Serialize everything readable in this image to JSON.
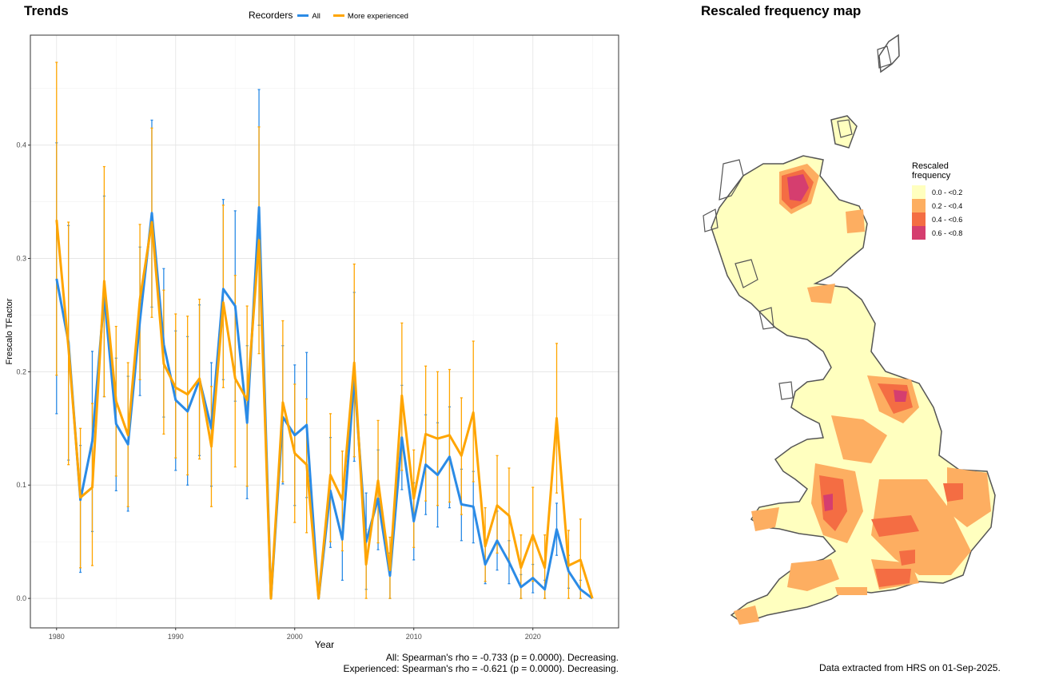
{
  "trends": {
    "title": "Trends",
    "legend_title": "Recorders",
    "stat_all": "All: Spearman's rho = -0.733 (p = 0.0000). Decreasing.",
    "stat_experienced": "Experienced: Spearman's rho = -0.621 (p = 0.0000). Decreasing."
  },
  "map": {
    "title": "Rescaled frequency map",
    "legend_title_line1": "Rescaled",
    "legend_title_line2": "frequency",
    "bins": [
      {
        "label": "0.0 - <0.2",
        "color": "#ffffbf"
      },
      {
        "label": "0.2 - <0.4",
        "color": "#fdae61"
      },
      {
        "label": "0.4 - <0.6",
        "color": "#f46d43"
      },
      {
        "label": "0.6 - <0.8",
        "color": "#d53e6f"
      }
    ],
    "footnote": "Data extracted from HRS on 01-Sep-2025."
  },
  "chart_data": {
    "type": "line",
    "title": "Trends",
    "xlabel": "Year",
    "ylabel": "Frescalo TFactor",
    "xlim": [
      1977.8,
      2027.2
    ],
    "ylim": [
      -0.026,
      0.497
    ],
    "x_ticks": [
      1980,
      1990,
      2000,
      2010,
      2020
    ],
    "y_ticks": [
      0.0,
      0.1,
      0.2,
      0.3,
      0.4
    ],
    "y_tick_labels": [
      "0.0",
      "0.1",
      "0.2",
      "0.3",
      "0.4"
    ],
    "grid": true,
    "legend_placement": "top",
    "x": [
      1980,
      1981,
      1982,
      1983,
      1984,
      1985,
      1986,
      1987,
      1988,
      1989,
      1990,
      1991,
      1992,
      1993,
      1994,
      1995,
      1996,
      1997,
      1998,
      1999,
      2000,
      2001,
      2002,
      2003,
      2004,
      2005,
      2006,
      2007,
      2008,
      2009,
      2010,
      2011,
      2012,
      2013,
      2014,
      2015,
      2016,
      2017,
      2018,
      2019,
      2020,
      2021,
      2022,
      2023,
      2024,
      2025
    ],
    "series": [
      {
        "name": "All",
        "color": "#2b8be6",
        "values": [
          0.282,
          0.226,
          0.087,
          0.139,
          0.267,
          0.154,
          0.136,
          0.245,
          0.34,
          0.224,
          0.175,
          0.165,
          0.193,
          0.15,
          0.273,
          0.258,
          0.155,
          0.345,
          0.0,
          0.16,
          0.144,
          0.153,
          0.0,
          0.095,
          0.052,
          0.195,
          0.05,
          0.088,
          0.02,
          0.142,
          0.068,
          0.118,
          0.109,
          0.125,
          0.083,
          0.081,
          0.03,
          0.051,
          0.032,
          0.01,
          0.018,
          0.008,
          0.061,
          0.024,
          0.008,
          0.0
        ],
        "lower": [
          0.163,
          0.122,
          0.023,
          0.059,
          0.178,
          0.095,
          0.077,
          0.179,
          0.257,
          0.16,
          0.113,
          0.1,
          0.126,
          0.099,
          0.193,
          0.174,
          0.088,
          0.241,
          0.0,
          0.101,
          0.082,
          0.089,
          0.0,
          0.045,
          0.016,
          0.121,
          0.008,
          0.043,
          0.0,
          0.096,
          0.034,
          0.074,
          0.063,
          0.08,
          0.051,
          0.049,
          0.013,
          0.025,
          0.013,
          0.0,
          0.005,
          0.0,
          0.038,
          0.009,
          0.0,
          0.0
        ],
        "upper": [
          0.402,
          0.329,
          0.135,
          0.218,
          0.355,
          0.212,
          0.196,
          0.31,
          0.422,
          0.291,
          0.236,
          0.231,
          0.259,
          0.208,
          0.352,
          0.342,
          0.223,
          0.449,
          0.0,
          0.223,
          0.206,
          0.217,
          0.0,
          0.142,
          0.088,
          0.27,
          0.093,
          0.131,
          0.04,
          0.188,
          0.102,
          0.162,
          0.155,
          0.169,
          0.114,
          0.112,
          0.048,
          0.077,
          0.051,
          0.021,
          0.03,
          0.016,
          0.084,
          0.038,
          0.016,
          0.0
        ]
      },
      {
        "name": "More experienced",
        "color": "#ffa500",
        "values": [
          0.334,
          0.221,
          0.089,
          0.098,
          0.28,
          0.174,
          0.144,
          0.264,
          0.332,
          0.207,
          0.186,
          0.18,
          0.194,
          0.134,
          0.261,
          0.194,
          0.175,
          0.316,
          0.0,
          0.173,
          0.128,
          0.118,
          0.0,
          0.109,
          0.087,
          0.208,
          0.03,
          0.104,
          0.025,
          0.179,
          0.088,
          0.145,
          0.141,
          0.144,
          0.126,
          0.164,
          0.046,
          0.082,
          0.073,
          0.027,
          0.056,
          0.027,
          0.159,
          0.029,
          0.034,
          0.0
        ],
        "lower": [
          0.197,
          0.118,
          0.027,
          0.029,
          0.178,
          0.108,
          0.081,
          0.193,
          0.248,
          0.145,
          0.124,
          0.109,
          0.123,
          0.081,
          0.186,
          0.116,
          0.099,
          0.216,
          0.0,
          0.103,
          0.067,
          0.058,
          0.0,
          0.05,
          0.042,
          0.125,
          0.0,
          0.049,
          0.0,
          0.113,
          0.045,
          0.086,
          0.082,
          0.085,
          0.074,
          0.103,
          0.015,
          0.04,
          0.033,
          0.0,
          0.015,
          0.0,
          0.093,
          0.0,
          0.0,
          0.0
        ],
        "upper": [
          0.473,
          0.332,
          0.15,
          0.172,
          0.381,
          0.24,
          0.208,
          0.33,
          0.415,
          0.272,
          0.251,
          0.249,
          0.264,
          0.187,
          0.347,
          0.285,
          0.258,
          0.416,
          0.0,
          0.245,
          0.189,
          0.176,
          0.0,
          0.163,
          0.13,
          0.295,
          0.061,
          0.157,
          0.054,
          0.243,
          0.131,
          0.205,
          0.2,
          0.202,
          0.177,
          0.227,
          0.08,
          0.126,
          0.115,
          0.056,
          0.098,
          0.056,
          0.225,
          0.06,
          0.07,
          0.0
        ]
      }
    ]
  }
}
